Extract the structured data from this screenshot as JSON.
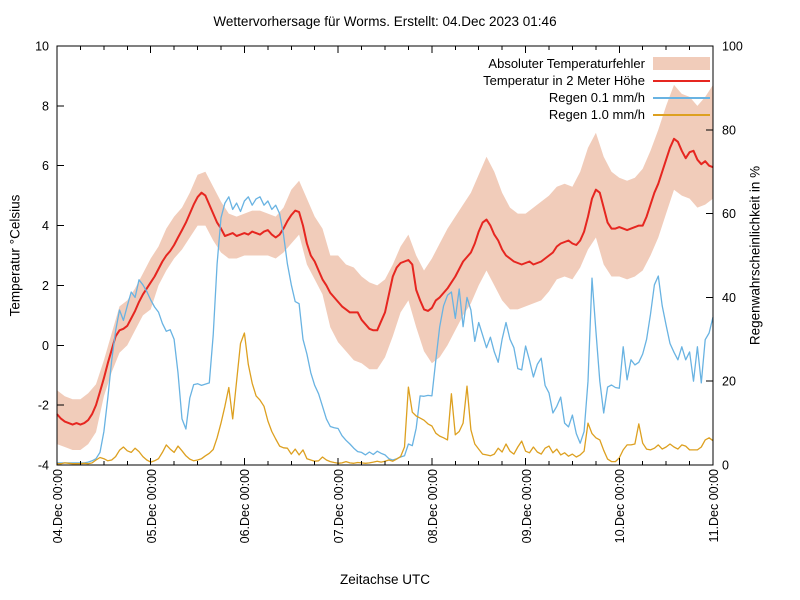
{
  "window": {
    "background": "#ffffff",
    "foreground": "#000000"
  },
  "chart_data": {
    "type": "line",
    "title": "Wettervorhersage für Worms. Erstellt: 04.Dec 2023 01:46",
    "xlabel": "Zeitachse UTC",
    "ylabel_left": "Temperatur °Celsius",
    "ylabel_right": "Regenwahrscheinlichkeit in %",
    "x_tick_labels": [
      "04.Dec 00:00",
      "05.Dec 00:00",
      "06.Dec 00:00",
      "07.Dec 00:00",
      "08.Dec 00:00",
      "09.Dec 00:00",
      "10.Dec 00:00",
      "11.Dec 00:00"
    ],
    "x_range_hours": [
      0,
      168
    ],
    "x_major_tick_hours": 24,
    "x_minor_tick_hours": 6,
    "ylim_left": [
      -4,
      10
    ],
    "yticks_left": [
      -4,
      -2,
      0,
      2,
      4,
      6,
      8,
      10
    ],
    "ylim_right": [
      0,
      100
    ],
    "yticks_right": [
      0,
      20,
      40,
      60,
      80,
      100
    ],
    "grid": false,
    "legend_position": "top-right-inside",
    "series": [
      {
        "name": "Absoluter Temperaturfehler",
        "type": "band",
        "axis": "left",
        "color": "#f1ccba",
        "step_hours": 2,
        "upper": [
          -1.5,
          -1.7,
          -1.8,
          -1.8,
          -1.6,
          -1.3,
          -0.5,
          0.4,
          1.3,
          1.5,
          1.9,
          2.4,
          2.9,
          3.3,
          3.9,
          4.3,
          4.6,
          5.1,
          5.7,
          5.8,
          5.3,
          4.8,
          4.4,
          4.3,
          4.4,
          4.5,
          4.5,
          4.4,
          4.3,
          4.6,
          5.2,
          5.5,
          4.9,
          4.3,
          3.9,
          3.0,
          3.0,
          2.7,
          2.6,
          2.3,
          2.1,
          2.0,
          2.2,
          2.7,
          3.3,
          3.7,
          3.0,
          2.5,
          2.9,
          3.4,
          3.9,
          4.3,
          4.7,
          5.1,
          5.7,
          6.3,
          5.8,
          5.1,
          4.6,
          4.4,
          4.4,
          4.6,
          4.8,
          5.0,
          5.3,
          5.4,
          5.3,
          5.8,
          6.6,
          7.1,
          6.3,
          5.8,
          5.6,
          5.5,
          5.6,
          5.9,
          6.5,
          7.2,
          8.0,
          8.7,
          8.4,
          8.3,
          8.0,
          8.3,
          8.7
        ],
        "lower": [
          -3.3,
          -3.4,
          -3.5,
          -3.5,
          -3.3,
          -2.9,
          -1.7,
          -0.9,
          -0.25,
          0.0,
          0.5,
          1.0,
          1.2,
          2.0,
          2.5,
          2.9,
          3.2,
          3.6,
          4.0,
          4.0,
          3.5,
          3.1,
          2.9,
          2.9,
          3.0,
          3.0,
          3.0,
          3.0,
          2.9,
          3.1,
          3.4,
          3.7,
          2.7,
          2.2,
          1.7,
          0.6,
          0.1,
          -0.2,
          -0.5,
          -0.6,
          -0.8,
          -0.8,
          -0.4,
          0.3,
          1.1,
          1.5,
          0.6,
          -0.2,
          -0.6,
          -0.4,
          0.0,
          0.5,
          1.0,
          1.4,
          2.0,
          2.5,
          2.0,
          1.5,
          1.2,
          1.2,
          1.3,
          1.4,
          1.5,
          1.8,
          2.2,
          2.3,
          2.2,
          2.6,
          3.2,
          3.6,
          2.7,
          2.3,
          2.3,
          2.2,
          2.3,
          2.5,
          3.0,
          3.6,
          4.4,
          5.2,
          5.0,
          4.9,
          4.6,
          4.7,
          4.9
        ]
      },
      {
        "name": "Temperatur in 2 Meter Höhe",
        "type": "line",
        "axis": "left",
        "color": "#e62620",
        "width": 2,
        "step_hours": 1,
        "values": [
          -2.3,
          -2.45,
          -2.55,
          -2.6,
          -2.65,
          -2.6,
          -2.65,
          -2.6,
          -2.5,
          -2.3,
          -2.0,
          -1.55,
          -1.1,
          -0.6,
          -0.15,
          0.3,
          0.5,
          0.55,
          0.65,
          0.9,
          1.15,
          1.45,
          1.7,
          1.9,
          2.1,
          2.3,
          2.55,
          2.8,
          3.0,
          3.15,
          3.35,
          3.6,
          3.85,
          4.1,
          4.4,
          4.7,
          4.95,
          5.1,
          5.0,
          4.7,
          4.4,
          4.1,
          3.9,
          3.65,
          3.7,
          3.75,
          3.65,
          3.7,
          3.75,
          3.7,
          3.8,
          3.75,
          3.7,
          3.8,
          3.85,
          3.7,
          3.6,
          3.7,
          3.9,
          4.15,
          4.35,
          4.5,
          4.45,
          4.0,
          3.4,
          3.0,
          2.8,
          2.5,
          2.2,
          2.0,
          1.75,
          1.6,
          1.45,
          1.3,
          1.2,
          1.1,
          1.1,
          1.1,
          0.85,
          0.7,
          0.55,
          0.5,
          0.5,
          0.8,
          1.1,
          1.7,
          2.3,
          2.6,
          2.75,
          2.8,
          2.85,
          2.7,
          1.85,
          1.5,
          1.2,
          1.15,
          1.25,
          1.5,
          1.6,
          1.75,
          1.9,
          2.1,
          2.3,
          2.55,
          2.8,
          2.95,
          3.1,
          3.4,
          3.8,
          4.1,
          4.2,
          4.0,
          3.7,
          3.5,
          3.2,
          3.0,
          2.9,
          2.8,
          2.75,
          2.7,
          2.75,
          2.8,
          2.7,
          2.75,
          2.8,
          2.9,
          3.0,
          3.1,
          3.3,
          3.4,
          3.45,
          3.5,
          3.4,
          3.35,
          3.5,
          3.8,
          4.3,
          4.9,
          5.2,
          5.1,
          4.6,
          4.1,
          3.9,
          3.9,
          3.95,
          3.9,
          3.85,
          3.9,
          3.95,
          4.0,
          4.0,
          4.3,
          4.7,
          5.1,
          5.4,
          5.8,
          6.2,
          6.6,
          6.9,
          6.8,
          6.5,
          6.25,
          6.45,
          6.5,
          6.2,
          6.05,
          6.15,
          6.0,
          5.95
        ]
      },
      {
        "name": "Regen 0.1 mm/h",
        "type": "line",
        "axis": "right",
        "color": "#69b3e2",
        "width": 1.3,
        "step_hours": 1,
        "values": [
          0.5,
          0.5,
          0.5,
          0.5,
          0.5,
          0.5,
          0.5,
          0.5,
          0.7,
          1.0,
          1.5,
          3,
          8,
          16,
          25,
          32,
          37,
          34.5,
          38,
          41.3,
          40,
          44.2,
          43,
          41.4,
          39.4,
          37.7,
          36.5,
          33.8,
          31.9,
          32.3,
          30,
          22,
          11,
          8.6,
          16,
          19.2,
          19.4,
          19,
          19.3,
          19.6,
          31,
          48,
          59,
          62.5,
          64,
          61,
          62.5,
          60.5,
          63,
          64,
          62,
          63.5,
          64,
          62,
          63,
          61,
          62,
          60,
          55,
          48,
          43,
          39,
          38.5,
          30,
          26.5,
          22,
          19,
          17,
          14,
          11,
          9.2,
          8.9,
          8.7,
          7.0,
          5.9,
          5.0,
          4.0,
          3.2,
          3.0,
          2.4,
          3.1,
          2.5,
          3.3,
          2.8,
          2.4,
          1.5,
          1.2,
          1.5,
          1.9,
          2.2,
          5.0,
          4.6,
          8.8,
          16.5,
          16.4,
          16.6,
          16.5,
          25,
          33,
          38,
          40.5,
          41.3,
          35,
          42,
          33,
          40,
          37,
          29.5,
          34,
          31,
          28,
          30.5,
          27,
          24.5,
          30,
          34,
          30,
          28,
          23,
          22.7,
          28.4,
          25,
          21,
          24,
          25.5,
          19,
          17.2,
          12.4,
          14,
          16.2,
          10,
          9.1,
          11.9,
          7.5,
          5.2,
          8,
          20,
          44.6,
          32,
          20,
          12.4,
          18.6,
          19.1,
          18.5,
          18.3,
          28.2,
          20.3,
          25.1,
          23.9,
          24.5,
          26.5,
          30,
          36,
          43,
          45.1,
          38,
          33.4,
          29,
          26.9,
          25.1,
          28.2,
          25.1,
          27,
          20,
          28.2,
          19.6,
          29.9,
          31.5,
          35.3
        ]
      },
      {
        "name": "Regen 1.0 mm/h",
        "type": "line",
        "axis": "right",
        "color": "#dda020",
        "width": 1.3,
        "step_hours": 1,
        "values": [
          0.3,
          0.3,
          0.5,
          0.4,
          0.3,
          0.3,
          0.3,
          0.4,
          0.3,
          0.5,
          1.2,
          1.8,
          1.5,
          1.0,
          1.2,
          2.0,
          3.5,
          4.3,
          3.4,
          3.0,
          4.0,
          3.2,
          2.0,
          1.2,
          0.7,
          1.0,
          1.5,
          3.0,
          4.8,
          3.8,
          3.0,
          4.5,
          3.4,
          2.2,
          1.4,
          1.0,
          1.2,
          1.5,
          2.2,
          2.8,
          3.7,
          6.5,
          10,
          14,
          18.5,
          11,
          20,
          29,
          31.5,
          24,
          19.5,
          16.5,
          15.5,
          14,
          10.5,
          8,
          6.2,
          4.5,
          4.1,
          4.0,
          2.6,
          3.8,
          2.4,
          3.6,
          1.5,
          1.2,
          0.9,
          1.0,
          1.9,
          1.2,
          0.8,
          0.6,
          0.4,
          0.5,
          0.8,
          0.5,
          0.4,
          0.6,
          0.5,
          0.4,
          0.5,
          0.7,
          0.9,
          0.7,
          0.9,
          1.2,
          0.9,
          1.4,
          2.0,
          4.3,
          18.6,
          12.6,
          11.7,
          11.2,
          10.7,
          9.8,
          9.3,
          7.6,
          6.9,
          6.5,
          6.0,
          17.0,
          7.2,
          8.0,
          10.0,
          18.8,
          8.4,
          5.0,
          3.8,
          2.6,
          2.4,
          2.2,
          2.6,
          4.0,
          3.1,
          5.0,
          3.3,
          2.6,
          4.3,
          5.7,
          3.3,
          2.9,
          4.3,
          3.1,
          2.6,
          4.0,
          4.5,
          2.9,
          3.8,
          2.4,
          2.9,
          2.1,
          2.6,
          1.9,
          2.4,
          3.3,
          10.0,
          7.5,
          6.5,
          6.0,
          3.5,
          1.4,
          0.8,
          0.8,
          1.7,
          3.6,
          4.8,
          4.8,
          5.0,
          9.8,
          5.2,
          3.8,
          3.6,
          4.0,
          4.8,
          3.8,
          4.3,
          5.0,
          4.3,
          3.8,
          4.8,
          4.5,
          3.6,
          3.6,
          3.6,
          4.3,
          6.0,
          6.5,
          5.8
        ]
      }
    ]
  }
}
